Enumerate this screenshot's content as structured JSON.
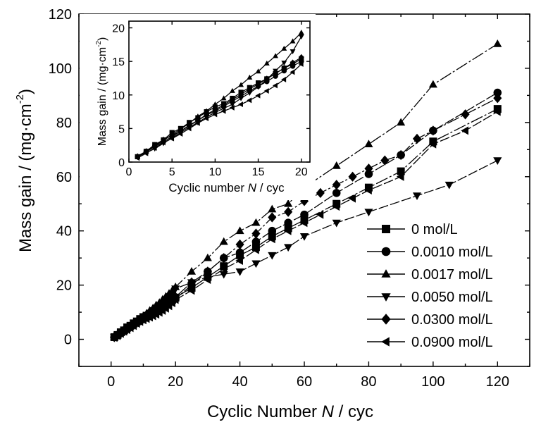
{
  "chart_data": [
    {
      "type": "line",
      "xlabel": "Cyclic Number N / cyc",
      "xlabel_parts": {
        "pre": "Cyclic Number ",
        "italic": "N",
        "post": " / cyc"
      },
      "ylabel": "Mass gain / (mg·cm-2)",
      "ylabel_parts": {
        "pre": "Mass gain / (mg·cm",
        "sup": "-2",
        "post": ")"
      },
      "xlim": [
        -10,
        130
      ],
      "ylim": [
        -10,
        120
      ],
      "xticks": [
        "0",
        "20",
        "40",
        "60",
        "80",
        "100",
        "120"
      ],
      "yticks": [
        "0",
        "20",
        "40",
        "60",
        "80",
        "100",
        "120"
      ],
      "legend_position": "bottom-right",
      "series": [
        {
          "name": "0 mol/L",
          "marker": "square",
          "x": [
            1,
            2,
            3,
            4,
            5,
            6,
            7,
            8,
            9,
            10,
            11,
            12,
            13,
            14,
            15,
            16,
            17,
            18,
            19,
            20,
            25,
            30,
            35,
            40,
            45,
            50,
            55,
            60,
            70,
            80,
            90,
            100,
            120
          ],
          "y": [
            0.8,
            1.6,
            2.6,
            3.3,
            4.4,
            5.0,
            5.9,
            6.6,
            7.5,
            8.2,
            8.7,
            9.5,
            10.4,
            11.1,
            11.8,
            12.4,
            13.2,
            14.0,
            14.6,
            15.4,
            19,
            23,
            27,
            31,
            34,
            38,
            41,
            44,
            50,
            56,
            62,
            73,
            85
          ]
        },
        {
          "name": "0.0010 mol/L",
          "marker": "circle",
          "x": [
            1,
            2,
            3,
            4,
            5,
            6,
            7,
            8,
            9,
            10,
            11,
            12,
            13,
            14,
            15,
            16,
            17,
            18,
            19,
            20,
            25,
            30,
            35,
            40,
            45,
            50,
            55,
            60,
            70,
            80,
            90,
            100,
            120
          ],
          "y": [
            0.8,
            1.5,
            2.3,
            3.0,
            3.8,
            4.6,
            5.5,
            6.2,
            7.0,
            7.6,
            8.3,
            9.1,
            9.8,
            10.6,
            11.3,
            12.0,
            12.8,
            13.6,
            14.3,
            15.0,
            20,
            25,
            30,
            32,
            36,
            40,
            43,
            46,
            54,
            61,
            68,
            77,
            91
          ]
        },
        {
          "name": "0.0017 mol/L",
          "marker": "triangle-up",
          "x": [
            1,
            2,
            3,
            4,
            5,
            6,
            7,
            8,
            9,
            10,
            11,
            12,
            13,
            14,
            15,
            16,
            17,
            18,
            19,
            20,
            25,
            30,
            35,
            40,
            45,
            50,
            55,
            60,
            70,
            80,
            90,
            100,
            120
          ],
          "y": [
            0.9,
            1.6,
            2.4,
            3.2,
            4.1,
            4.9,
            5.8,
            6.8,
            7.6,
            8.6,
            9.5,
            10.6,
            11.5,
            12.6,
            13.5,
            14.7,
            15.8,
            16.9,
            18.0,
            19.3,
            25,
            30,
            36,
            40,
            43,
            48,
            50,
            56,
            64,
            72,
            80,
            94,
            109
          ]
        },
        {
          "name": "0.0050 mol/L",
          "marker": "triangle-down",
          "x": [
            1,
            2,
            3,
            4,
            5,
            6,
            7,
            8,
            9,
            10,
            11,
            12,
            13,
            14,
            15,
            16,
            17,
            18,
            19,
            20,
            25,
            30,
            35,
            40,
            45,
            50,
            55,
            60,
            70,
            80,
            95,
            105,
            120
          ],
          "y": [
            0.8,
            1.4,
            2.0,
            2.8,
            3.6,
            4.4,
            5.2,
            5.9,
            6.7,
            7.4,
            8.0,
            8.6,
            9.5,
            10.3,
            11.2,
            12.3,
            13.6,
            14.8,
            16.5,
            18.7,
            21,
            23,
            24,
            25,
            28,
            31,
            34,
            38,
            43,
            47,
            53,
            57,
            66
          ]
        },
        {
          "name": "0.0300 mol/L",
          "marker": "diamond",
          "x": [
            1,
            2,
            3,
            4,
            5,
            6,
            7,
            8,
            9,
            10,
            11,
            12,
            13,
            14,
            15,
            16,
            17,
            18,
            19,
            20,
            25,
            30,
            35,
            40,
            45,
            50,
            55,
            60,
            65,
            70,
            75,
            80,
            85,
            90,
            95,
            100,
            110,
            120
          ],
          "y": [
            0.8,
            1.6,
            2.5,
            3.3,
            4.0,
            4.6,
            5.4,
            6.2,
            7.1,
            7.8,
            8.5,
            9.3,
            10.1,
            10.9,
            11.6,
            12.4,
            13.2,
            14.0,
            14.8,
            15.6,
            21,
            25,
            30,
            35,
            39,
            45,
            47,
            51,
            54,
            57,
            60,
            63,
            66,
            68,
            74,
            77,
            83,
            89
          ]
        },
        {
          "name": "0.0900 mol/L",
          "marker": "triangle-left",
          "x": [
            1,
            2,
            3,
            4,
            5,
            6,
            7,
            8,
            9,
            10,
            11,
            12,
            13,
            14,
            15,
            16,
            17,
            18,
            19,
            20,
            25,
            30,
            35,
            40,
            45,
            50,
            55,
            60,
            65,
            70,
            75,
            80,
            90,
            100,
            110,
            120
          ],
          "y": [
            0.6,
            1.3,
            2.1,
            2.9,
            3.5,
            4.2,
            5.0,
            5.8,
            6.5,
            7.1,
            7.6,
            8.1,
            8.6,
            9.2,
            9.9,
            10.6,
            11.4,
            12.3,
            13.4,
            14.6,
            18,
            22,
            26,
            29,
            33,
            37,
            40,
            43,
            46,
            49,
            52,
            55,
            60,
            72,
            77,
            84
          ]
        }
      ]
    },
    {
      "type": "line",
      "subplot": "inset",
      "xlabel": "Cyclic number N / cyc",
      "xlabel_parts": {
        "pre": "Cyclic number ",
        "italic": "N",
        "post": " / cyc"
      },
      "ylabel": "Mass gain / (mg·cm-2)",
      "ylabel_parts": {
        "pre": "Mass gain / (mg·cm",
        "sup": "-2",
        "post": ")"
      },
      "xlim": [
        0,
        21
      ],
      "ylim": [
        0,
        21
      ],
      "xticks": [
        "0",
        "5",
        "10",
        "15",
        "20"
      ],
      "yticks": [
        "0",
        "5",
        "10",
        "15",
        "20"
      ],
      "series_ref": "same six series as main chart, cycles 1–20"
    }
  ],
  "legend": {
    "entries": [
      "0 mol/L",
      "0.0010 mol/L",
      "0.0017 mol/L",
      "0.0050 mol/L",
      "0.0300 mol/L",
      "0.0900 mol/L"
    ]
  },
  "colors": {
    "axes": "#000000",
    "series": "#000000",
    "background": "#ffffff"
  }
}
